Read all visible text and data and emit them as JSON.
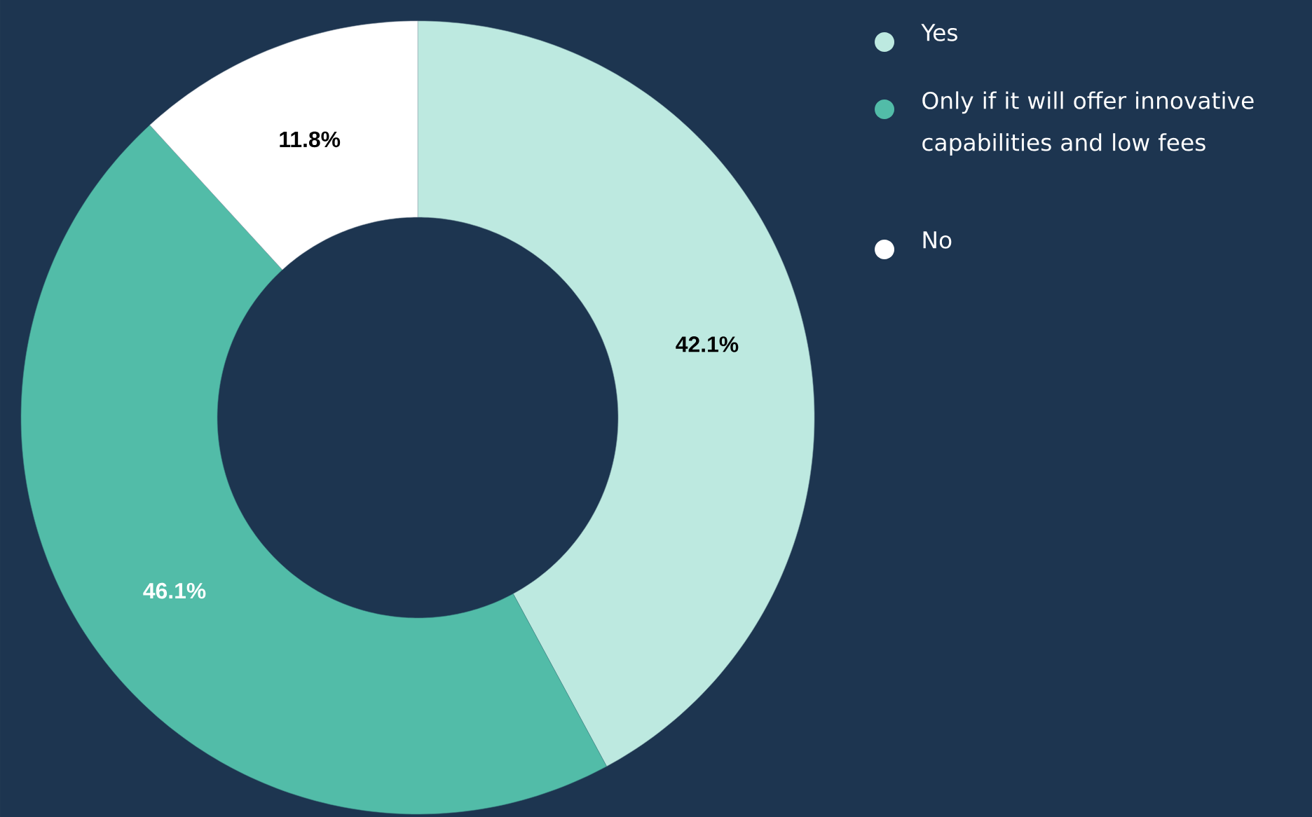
{
  "chart_data": {
    "type": "donut",
    "categories": [
      "Yes",
      "Only if it will offer innovative capabilities and low fees",
      "No"
    ],
    "values": [
      42.1,
      46.1,
      11.8
    ],
    "colors": [
      "#bde9e0",
      "#52bca8",
      "#ffffff"
    ],
    "value_labels": [
      "42.1%",
      "46.1%",
      "11.8%"
    ],
    "legend": "top right"
  }
}
